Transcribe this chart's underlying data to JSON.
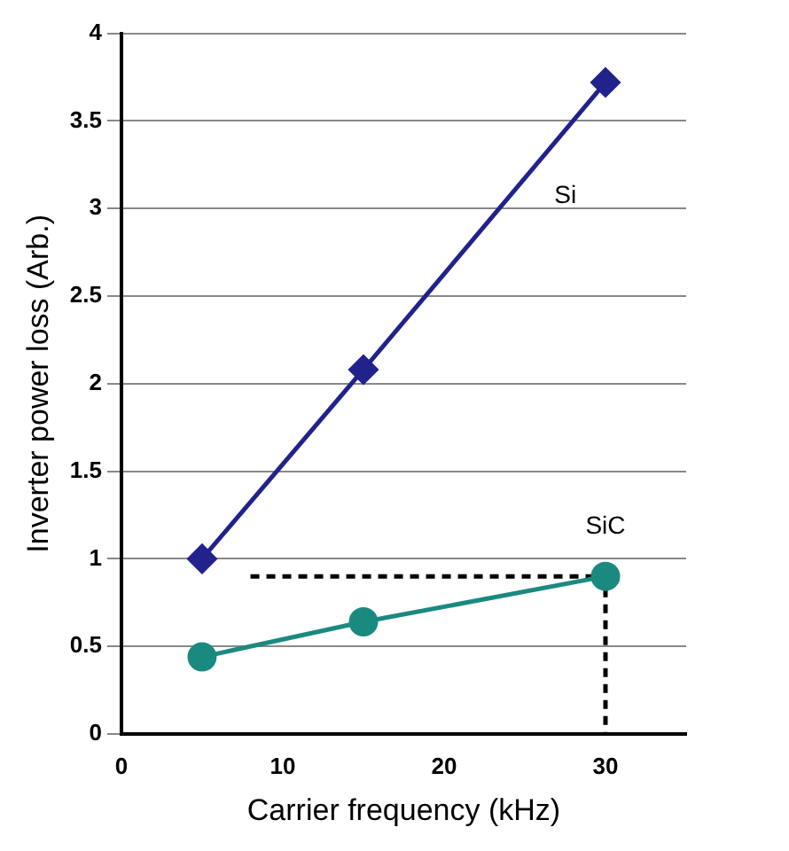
{
  "chart_data": {
    "type": "line",
    "xlabel": "Carrier frequency (kHz)",
    "ylabel": "Inverter power loss (Arb.)",
    "xlim": [
      0,
      35
    ],
    "xticks": [
      0,
      10,
      20,
      30
    ],
    "ylim": [
      0,
      4
    ],
    "yticks": [
      0,
      0.5,
      1,
      1.5,
      2,
      2.5,
      3,
      3.5,
      4
    ],
    "grid": "y",
    "legend": false,
    "series": [
      {
        "name": "Si",
        "color": "#22228c",
        "x": [
          5,
          15,
          30
        ],
        "values": [
          1.0,
          2.08,
          3.72
        ],
        "marker": "diamond",
        "line_style": "solid"
      },
      {
        "name": "SiC",
        "color": "#1a8a80",
        "x": [
          5,
          15,
          30
        ],
        "values": [
          0.44,
          0.64,
          0.9
        ],
        "marker": "circle",
        "line_style": "solid"
      },
      {
        "color": "#000000",
        "x": [
          8,
          30,
          30
        ],
        "values": [
          0.9,
          0.9,
          0
        ],
        "marker": "none",
        "line_style": "dashed"
      }
    ]
  }
}
